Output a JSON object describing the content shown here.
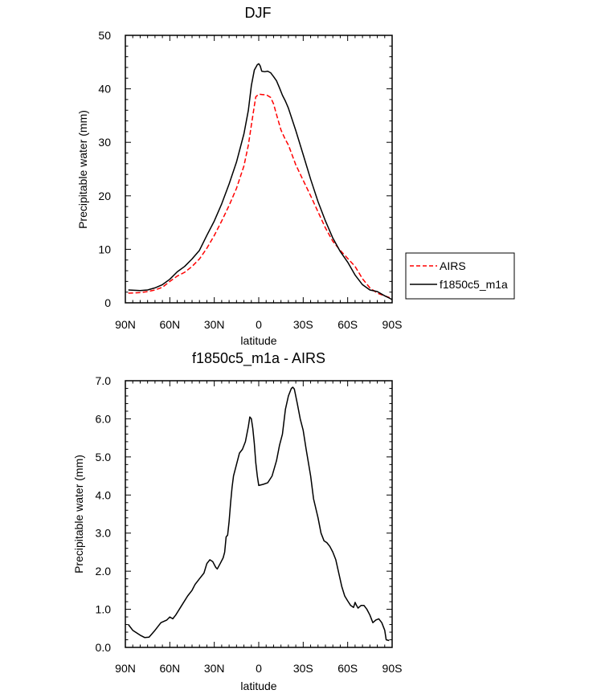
{
  "chart_data": [
    {
      "type": "line",
      "title": "DJF",
      "xlabel": "latitude",
      "ylabel": "Precipitable water (mm)",
      "xlim": [
        90,
        -90
      ],
      "ylim": [
        0,
        50
      ],
      "x_tick_values": [
        90,
        60,
        30,
        0,
        -30,
        -60,
        -90
      ],
      "x_tick_labels": [
        "90N",
        "60N",
        "30N",
        "0",
        "30S",
        "60S",
        "90S"
      ],
      "y_tick_values": [
        0,
        10,
        20,
        30,
        40,
        50
      ],
      "y_tick_labels": [
        "0",
        "10",
        "20",
        "30",
        "40",
        "50"
      ],
      "legend": {
        "position": "right",
        "entries": [
          "AIRS",
          "f1850c5_m1a"
        ]
      },
      "series": [
        {
          "name": "AIRS",
          "color": "#ff0000",
          "dash": "dashed",
          "points": [
            [
              88,
              1.8
            ],
            [
              80,
              1.9
            ],
            [
              75,
              2.1
            ],
            [
              70,
              2.4
            ],
            [
              65,
              2.9
            ],
            [
              60,
              4.0
            ],
            [
              55,
              5.0
            ],
            [
              50,
              5.7
            ],
            [
              45,
              6.8
            ],
            [
              40,
              8.2
            ],
            [
              35,
              10.2
            ],
            [
              30,
              12.6
            ],
            [
              25,
              15.3
            ],
            [
              20,
              18.2
            ],
            [
              15,
              21.4
            ],
            [
              10,
              25.6
            ],
            [
              7,
              29.5
            ],
            [
              5,
              33.2
            ],
            [
              3,
              36.8
            ],
            [
              2,
              38.5
            ],
            [
              0,
              39.0
            ],
            [
              -3,
              38.9
            ],
            [
              -5,
              38.9
            ],
            [
              -8,
              38.4
            ],
            [
              -10,
              37.2
            ],
            [
              -12,
              35.2
            ],
            [
              -15,
              32.3
            ],
            [
              -18,
              30.5
            ],
            [
              -20,
              29.5
            ],
            [
              -25,
              25.8
            ],
            [
              -30,
              22.9
            ],
            [
              -35,
              20.0
            ],
            [
              -40,
              17.0
            ],
            [
              -45,
              14.0
            ],
            [
              -50,
              11.5
            ],
            [
              -55,
              9.8
            ],
            [
              -60,
              8.3
            ],
            [
              -65,
              6.8
            ],
            [
              -70,
              4.5
            ],
            [
              -75,
              2.8
            ],
            [
              -80,
              1.8
            ],
            [
              -85,
              1.3
            ],
            [
              -88,
              1.0
            ],
            [
              -90,
              0.6
            ]
          ]
        },
        {
          "name": "f1850c5_m1a",
          "color": "#000000",
          "dash": "solid",
          "points": [
            [
              88,
              2.4
            ],
            [
              80,
              2.3
            ],
            [
              75,
              2.4
            ],
            [
              70,
              2.8
            ],
            [
              65,
              3.4
            ],
            [
              60,
              4.4
            ],
            [
              55,
              5.8
            ],
            [
              50,
              6.8
            ],
            [
              45,
              8.2
            ],
            [
              40,
              9.8
            ],
            [
              35,
              12.6
            ],
            [
              30,
              15.3
            ],
            [
              25,
              18.5
            ],
            [
              20,
              22.2
            ],
            [
              15,
              26.3
            ],
            [
              10,
              31.6
            ],
            [
              7,
              36.0
            ],
            [
              5,
              40.6
            ],
            [
              3,
              43.5
            ],
            [
              1,
              44.5
            ],
            [
              0,
              44.7
            ],
            [
              -1,
              44.3
            ],
            [
              -2,
              43.3
            ],
            [
              -4,
              43.2
            ],
            [
              -6,
              43.3
            ],
            [
              -8,
              43.0
            ],
            [
              -10,
              42.3
            ],
            [
              -12,
              41.5
            ],
            [
              -14,
              40.2
            ],
            [
              -16,
              38.8
            ],
            [
              -18,
              37.7
            ],
            [
              -20,
              36.4
            ],
            [
              -25,
              32.2
            ],
            [
              -30,
              27.7
            ],
            [
              -35,
              23.1
            ],
            [
              -40,
              18.9
            ],
            [
              -45,
              15.3
            ],
            [
              -50,
              12.1
            ],
            [
              -55,
              9.6
            ],
            [
              -60,
              7.6
            ],
            [
              -65,
              5.2
            ],
            [
              -70,
              3.4
            ],
            [
              -75,
              2.4
            ],
            [
              -80,
              2.1
            ],
            [
              -85,
              1.3
            ],
            [
              -88,
              0.9
            ],
            [
              -90,
              0.6
            ]
          ]
        }
      ]
    },
    {
      "type": "line",
      "title": "f1850c5_m1a - AIRS",
      "xlabel": "latitude",
      "ylabel": "Precipitable water (mm)",
      "xlim": [
        90,
        -90
      ],
      "ylim": [
        0,
        7
      ],
      "x_tick_values": [
        90,
        60,
        30,
        0,
        -30,
        -60,
        -90
      ],
      "x_tick_labels": [
        "90N",
        "60N",
        "30N",
        "0",
        "30S",
        "60S",
        "90S"
      ],
      "y_tick_values": [
        0,
        1,
        2,
        3,
        4,
        5,
        6,
        7
      ],
      "y_tick_labels": [
        "0.0",
        "1.0",
        "2.0",
        "3.0",
        "4.0",
        "5.0",
        "6.0",
        "7.0"
      ],
      "series": [
        {
          "name": "f1850c5_m1a - AIRS",
          "color": "#000000",
          "dash": "solid",
          "points": [
            [
              88,
              0.6
            ],
            [
              85,
              0.45
            ],
            [
              80,
              0.32
            ],
            [
              77,
              0.26
            ],
            [
              74,
              0.27
            ],
            [
              70,
              0.45
            ],
            [
              66,
              0.65
            ],
            [
              62,
              0.72
            ],
            [
              60,
              0.8
            ],
            [
              58,
              0.75
            ],
            [
              56,
              0.85
            ],
            [
              52,
              1.1
            ],
            [
              48,
              1.35
            ],
            [
              45,
              1.5
            ],
            [
              43,
              1.65
            ],
            [
              40,
              1.8
            ],
            [
              37,
              1.95
            ],
            [
              35,
              2.2
            ],
            [
              33,
              2.3
            ],
            [
              31,
              2.25
            ],
            [
              29,
              2.1
            ],
            [
              28,
              2.06
            ],
            [
              26,
              2.2
            ],
            [
              24,
              2.35
            ],
            [
              23,
              2.5
            ],
            [
              22,
              2.9
            ],
            [
              21,
              2.95
            ],
            [
              20,
              3.3
            ],
            [
              19,
              3.8
            ],
            [
              18,
              4.2
            ],
            [
              17,
              4.5
            ],
            [
              15,
              4.8
            ],
            [
              13,
              5.1
            ],
            [
              11,
              5.2
            ],
            [
              9,
              5.4
            ],
            [
              7,
              5.8
            ],
            [
              6,
              6.05
            ],
            [
              5,
              6.0
            ],
            [
              4,
              5.75
            ],
            [
              3,
              5.35
            ],
            [
              2,
              4.85
            ],
            [
              1,
              4.5
            ],
            [
              0,
              4.25
            ],
            [
              -3,
              4.28
            ],
            [
              -6,
              4.32
            ],
            [
              -9,
              4.5
            ],
            [
              -12,
              4.9
            ],
            [
              -14,
              5.3
            ],
            [
              -16,
              5.6
            ],
            [
              -18,
              6.25
            ],
            [
              -20,
              6.6
            ],
            [
              -22,
              6.8
            ],
            [
              -23,
              6.83
            ],
            [
              -24,
              6.78
            ],
            [
              -26,
              6.4
            ],
            [
              -28,
              6.0
            ],
            [
              -30,
              5.7
            ],
            [
              -32,
              5.2
            ],
            [
              -35,
              4.5
            ],
            [
              -37,
              3.9
            ],
            [
              -40,
              3.4
            ],
            [
              -42,
              3.0
            ],
            [
              -44,
              2.8
            ],
            [
              -46,
              2.75
            ],
            [
              -48,
              2.65
            ],
            [
              -50,
              2.5
            ],
            [
              -52,
              2.3
            ],
            [
              -54,
              1.95
            ],
            [
              -56,
              1.6
            ],
            [
              -58,
              1.35
            ],
            [
              -60,
              1.22
            ],
            [
              -62,
              1.1
            ],
            [
              -64,
              1.05
            ],
            [
              -65,
              1.18
            ],
            [
              -66,
              1.1
            ],
            [
              -67,
              1.03
            ],
            [
              -69,
              1.1
            ],
            [
              -71,
              1.1
            ],
            [
              -73,
              1.0
            ],
            [
              -75,
              0.85
            ],
            [
              -77,
              0.65
            ],
            [
              -79,
              0.72
            ],
            [
              -81,
              0.75
            ],
            [
              -83,
              0.65
            ],
            [
              -85,
              0.45
            ],
            [
              -86,
              0.2
            ],
            [
              -88,
              0.18
            ]
          ]
        }
      ]
    }
  ]
}
